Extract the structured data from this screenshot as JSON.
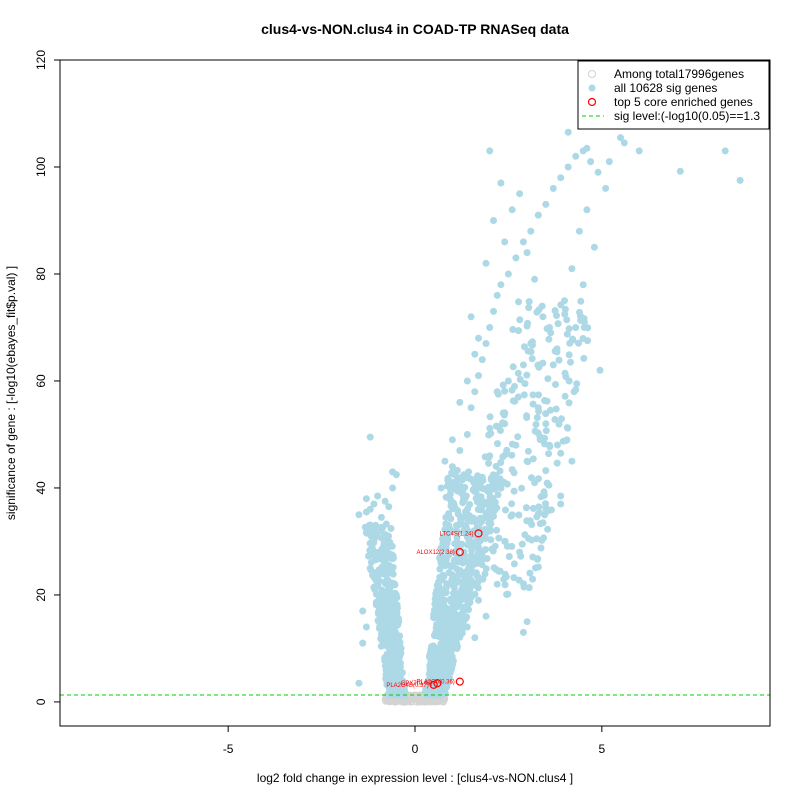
{
  "chart_data": {
    "type": "scatter",
    "title": "clus4-vs-NON.clus4 in COAD-TP RNASeq data",
    "xlabel": "log2 fold change in expression level : [clus4-vs-NON.clus4 ]",
    "ylabel": "significance of gene : [-log10(ebayes_fit$p.val) ]",
    "xlim": [
      -9.5,
      9.5
    ],
    "ylim": [
      -4.5,
      120
    ],
    "x_ticks": [
      -5,
      0,
      5
    ],
    "y_ticks": [
      0,
      20,
      40,
      60,
      80,
      100,
      120
    ],
    "sig_level": 1.3,
    "legend": {
      "position": "top-right",
      "entries": [
        {
          "label": "Among total17996genes",
          "marker": "open-circle",
          "color": "#d3d3d3"
        },
        {
          "label": "all 10628 sig genes",
          "marker": "filled-circle",
          "color": "#add8e6"
        },
        {
          "label": "top 5 core enriched genes",
          "marker": "open-circle",
          "color": "#ff0000"
        },
        {
          "label": "sig level:(-log10(0.05)==1.3",
          "marker": "dashed-line",
          "color": "#00cc00"
        }
      ]
    },
    "series": [
      {
        "name": "sig genes",
        "color": "#add8e6",
        "points": [
          [
            -1.2,
            49.5
          ],
          [
            -0.6,
            43
          ],
          [
            -0.5,
            42.5
          ],
          [
            -0.6,
            40
          ],
          [
            -1.0,
            38.5
          ],
          [
            -1.3,
            38
          ],
          [
            -0.8,
            37.5
          ],
          [
            -1.1,
            37
          ],
          [
            -0.7,
            36.5
          ],
          [
            -1.2,
            36
          ],
          [
            -1.5,
            35
          ],
          [
            -1.3,
            35.5
          ],
          [
            -0.9,
            34.5
          ],
          [
            -1.4,
            17
          ],
          [
            -1.3,
            14
          ],
          [
            -1.5,
            3.5
          ],
          [
            -1.4,
            11
          ],
          [
            -1.2,
            25
          ],
          [
            0.7,
            40
          ],
          [
            1.0,
            44
          ],
          [
            1.2,
            47
          ],
          [
            1.4,
            50
          ],
          [
            1.5,
            55
          ],
          [
            1.6,
            58
          ],
          [
            1.7,
            61
          ],
          [
            1.8,
            64
          ],
          [
            1.9,
            67
          ],
          [
            2.0,
            70
          ],
          [
            2.1,
            73
          ],
          [
            2.2,
            76
          ],
          [
            2.3,
            78
          ],
          [
            2.5,
            80
          ],
          [
            2.7,
            83
          ],
          [
            2.9,
            86
          ],
          [
            3.1,
            88
          ],
          [
            3.3,
            91
          ],
          [
            3.5,
            93
          ],
          [
            3.7,
            96
          ],
          [
            3.9,
            98
          ],
          [
            4.1,
            100
          ],
          [
            4.3,
            102
          ],
          [
            4.5,
            103
          ],
          [
            4.7,
            101
          ],
          [
            4.9,
            99
          ],
          [
            5.1,
            96
          ],
          [
            1.5,
            72
          ],
          [
            1.7,
            68
          ],
          [
            1.9,
            82
          ],
          [
            2.1,
            90
          ],
          [
            2.4,
            86
          ],
          [
            2.6,
            92
          ],
          [
            2.8,
            95
          ],
          [
            3.0,
            84
          ],
          [
            3.2,
            79
          ],
          [
            3.4,
            74
          ],
          [
            3.6,
            70
          ],
          [
            3.8,
            66
          ],
          [
            4.0,
            75
          ],
          [
            4.2,
            81
          ],
          [
            4.4,
            88
          ],
          [
            4.6,
            92
          ],
          [
            4.8,
            85
          ],
          [
            2.0,
            103
          ],
          [
            2.3,
            97
          ],
          [
            4.1,
            106.5
          ],
          [
            4.6,
            103.5
          ],
          [
            5.2,
            101
          ],
          [
            5.5,
            105.5
          ],
          [
            5.6,
            104.5
          ],
          [
            6.0,
            103
          ],
          [
            7.1,
            99.2
          ],
          [
            8.3,
            103
          ],
          [
            8.7,
            97.5
          ],
          [
            4.95,
            62
          ],
          [
            4.2,
            45
          ],
          [
            3.6,
            48
          ],
          [
            3.9,
            37
          ],
          [
            3.9,
            38.5
          ],
          [
            3.2,
            41
          ],
          [
            3.0,
            15
          ],
          [
            2.9,
            13
          ],
          [
            2.4,
            30
          ],
          [
            2.2,
            22
          ],
          [
            1.9,
            16
          ],
          [
            1.7,
            19
          ],
          [
            1.6,
            12
          ],
          [
            1.4,
            14
          ],
          [
            2.6,
            35
          ],
          [
            2.8,
            28
          ],
          [
            3.3,
            55
          ],
          [
            3.5,
            52
          ],
          [
            2.0,
            46
          ],
          [
            1.8,
            42
          ],
          [
            1.3,
            38
          ],
          [
            1.1,
            36
          ],
          [
            0.9,
            33
          ],
          [
            2.5,
            60
          ],
          [
            2.9,
            63
          ],
          [
            3.1,
            67
          ],
          [
            1.6,
            65
          ],
          [
            1.4,
            60
          ],
          [
            1.2,
            56
          ],
          [
            3.7,
            63
          ],
          [
            4.3,
            70
          ],
          [
            4.5,
            78
          ],
          [
            2.2,
            58
          ],
          [
            2.4,
            52
          ],
          [
            2.7,
            48
          ],
          [
            3.0,
            45
          ],
          [
            1.0,
            49
          ],
          [
            0.8,
            45
          ],
          [
            1.9,
            35
          ],
          [
            2.1,
            40
          ]
        ]
      }
    ],
    "core_genes": [
      {
        "label": "LTC4S(1.24)",
        "x": 1.7,
        "y": 31.5
      },
      {
        "label": "ALOX12(2.38)",
        "x": 1.2,
        "y": 28
      },
      {
        "label": "PLA2G6(0.36)",
        "x": 1.2,
        "y": 3.8
      },
      {
        "label": "GPX7(0.45)",
        "x": 0.6,
        "y": 3.5
      },
      {
        "label": "PLA2G4B(0.37)",
        "x": 0.5,
        "y": 3.2
      }
    ]
  }
}
